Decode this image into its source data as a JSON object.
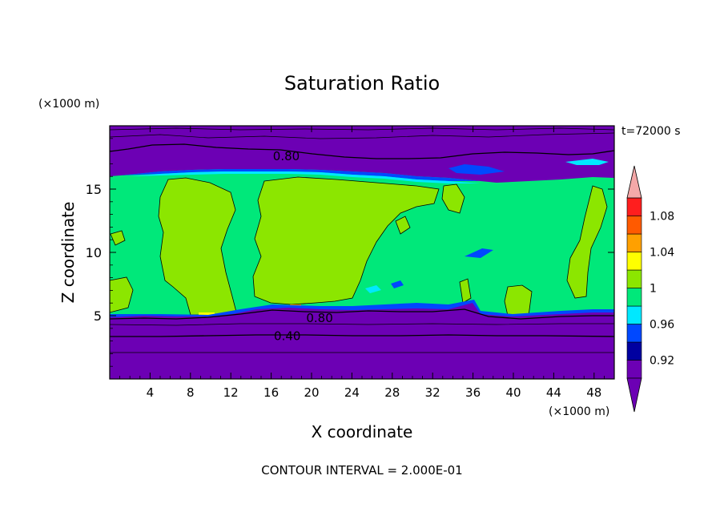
{
  "chart_data": {
    "type": "heatmap",
    "title": "Saturation Ratio",
    "xlabel": "X coordinate",
    "ylabel": "Z coordinate",
    "x_unit": "(×1000 m)",
    "y_unit": "(×1000 m)",
    "time_label": "t=72000 s",
    "footer": "CONTOUR INTERVAL = 2.000E-01",
    "xlim": [
      0,
      50
    ],
    "ylim": [
      0,
      20
    ],
    "x_ticks": [
      4,
      8,
      12,
      16,
      20,
      24,
      28,
      32,
      36,
      40,
      44,
      48
    ],
    "y_ticks": [
      5,
      10,
      15
    ],
    "contour_labels": [
      {
        "text": "0.80",
        "x": 17.5,
        "z": 17.6
      },
      {
        "text": "0.80",
        "x": 20.8,
        "z": 4.8
      },
      {
        "text": "0.40",
        "x": 17.6,
        "z": 3.4
      }
    ],
    "colorbar": {
      "levels": [
        0.9,
        0.92,
        0.94,
        0.96,
        0.98,
        1.0,
        1.02,
        1.04,
        1.06,
        1.08,
        1.1
      ],
      "tick_labels": [
        "0.92",
        "0.96",
        "1",
        "1.04",
        "1.08"
      ],
      "tick_values": [
        0.92,
        0.96,
        1.0,
        1.04,
        1.08
      ],
      "colors": [
        "#6c00b4",
        "#0000a0",
        "#0048ff",
        "#00e8ff",
        "#00e87a",
        "#8ce600",
        "#ffff00",
        "#ffa000",
        "#ff5a00",
        "#ff1e1e"
      ],
      "under_color": "#6c00b4",
      "over_color": "#f4a8a8"
    },
    "regions": {
      "upper_dry_top_z": 20,
      "upper_dry_bottom_z": 16.0,
      "lower_dry_top_z": 5.0,
      "lower_dry_bottom_z": 0
    }
  }
}
